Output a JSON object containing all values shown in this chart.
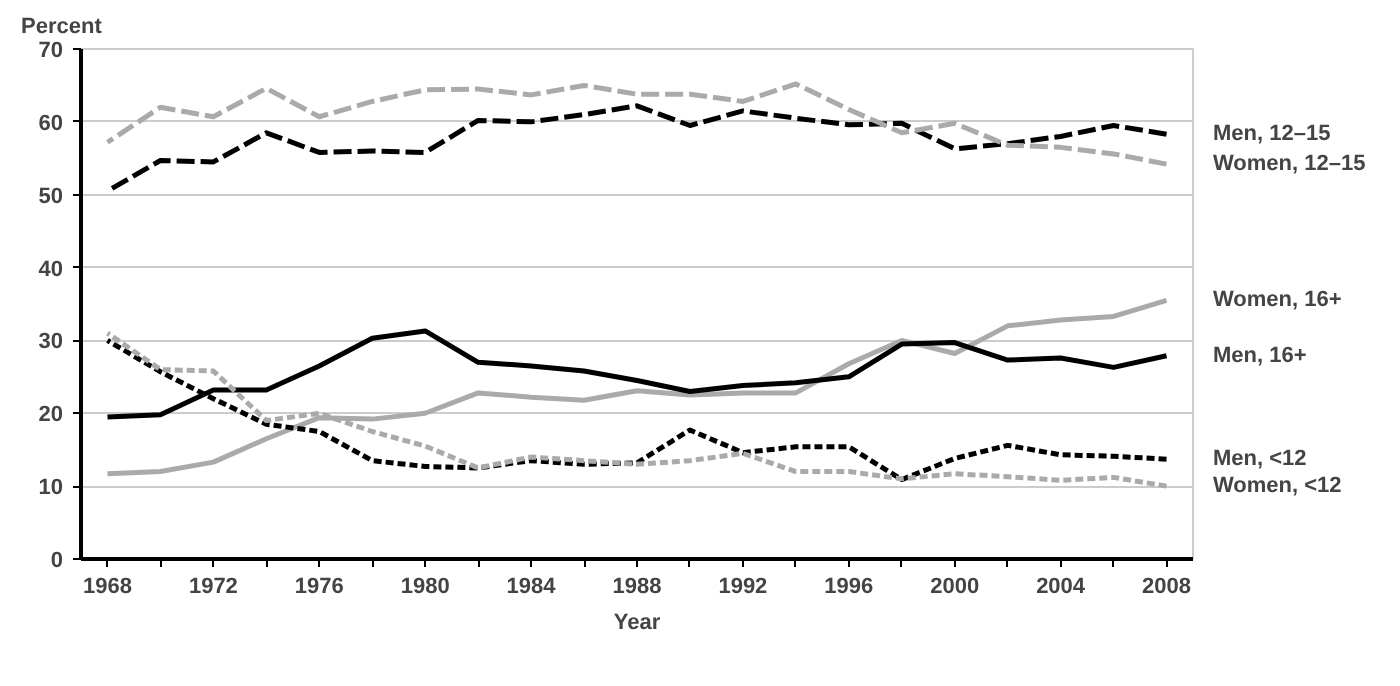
{
  "chart_data": {
    "type": "line",
    "title": "Percent",
    "xlabel": "Year",
    "x": [
      1968,
      1970,
      1972,
      1974,
      1976,
      1978,
      1980,
      1982,
      1984,
      1986,
      1988,
      1990,
      1992,
      1994,
      1996,
      1998,
      2000,
      2002,
      2004,
      2006,
      2008
    ],
    "series": [
      {
        "name": "Men, 12–15",
        "color": "#000000",
        "line_style": "dashed",
        "values": [
          50.5,
          54.7,
          54.5,
          58.5,
          55.8,
          56,
          55.8,
          60.2,
          60,
          61,
          62.2,
          59.5,
          61.5,
          60.5,
          59.6,
          59.8,
          56.3,
          57,
          58,
          59.5,
          58.3
        ]
      },
      {
        "name": "Women, 12–15",
        "color": "#aaaaaa",
        "line_style": "dashed",
        "values": [
          57.2,
          62,
          60.7,
          64.6,
          60.7,
          62.8,
          64.4,
          64.5,
          63.7,
          65,
          63.8,
          63.8,
          62.8,
          65.2,
          61.7,
          58.5,
          59.8,
          56.8,
          56.5,
          55.6,
          54.2
        ]
      },
      {
        "name": "Women, 16+",
        "color": "#aaaaaa",
        "line_style": "solid",
        "values": [
          11.7,
          12,
          13.3,
          16.5,
          19.4,
          19.2,
          20,
          22.8,
          22.2,
          21.8,
          23.1,
          22.5,
          22.8,
          22.8,
          26.8,
          30,
          28.2,
          32,
          32.8,
          33.3,
          35.5
        ]
      },
      {
        "name": "Men, 16+",
        "color": "#000000",
        "line_style": "solid",
        "values": [
          19.5,
          19.8,
          23.2,
          23.2,
          26.5,
          30.3,
          31.3,
          27,
          26.5,
          25.8,
          24.5,
          23,
          23.8,
          24.2,
          25,
          29.5,
          29.7,
          27.3,
          27.6,
          26.3,
          27.9
        ]
      },
      {
        "name": "Men, <12",
        "color": "#000000",
        "line_style": "dotted",
        "values": [
          30,
          25.7,
          22,
          18.5,
          17.5,
          13.5,
          12.7,
          12.5,
          13.5,
          13,
          13.2,
          17.7,
          14.6,
          15.4,
          15.4,
          10.9,
          13.8,
          15.6,
          14.3,
          14.1,
          13.7
        ]
      },
      {
        "name": "Women, <12",
        "color": "#aaaaaa",
        "line_style": "dotted",
        "values": [
          31,
          26,
          25.8,
          19,
          20,
          17.5,
          15.5,
          12.5,
          14,
          13.5,
          13,
          13.5,
          14.5,
          12,
          12,
          11,
          11.7,
          11.3,
          10.8,
          11.2,
          10
        ]
      }
    ],
    "xlim": [
      1967,
      2009
    ],
    "ylim": [
      0,
      70
    ],
    "xticks": [
      1968,
      {
        "value": 1970,
        "label": null
      },
      1972,
      {
        "value": 1974,
        "label": null
      },
      1976,
      {
        "value": 1978,
        "label": null
      },
      1980,
      {
        "value": 1982,
        "label": null
      },
      1984,
      {
        "value": 1986,
        "label": null
      },
      1988,
      {
        "value": 1990,
        "label": null
      },
      1992,
      {
        "value": 1994,
        "label": null
      },
      1996,
      {
        "value": 1998,
        "label": null
      },
      2000,
      {
        "value": 2002,
        "label": null
      },
      2004,
      {
        "value": 2006,
        "label": null
      },
      2008
    ],
    "yticks": [
      0,
      10,
      20,
      30,
      40,
      50,
      60,
      70
    ],
    "grid": "y"
  }
}
